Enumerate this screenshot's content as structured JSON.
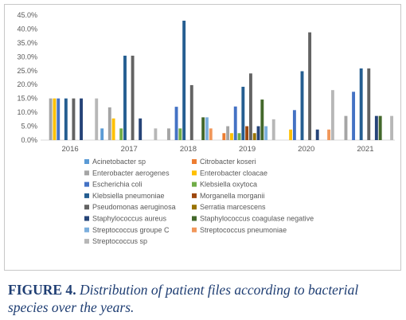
{
  "chart_data": {
    "type": "bar",
    "title": "",
    "xlabel": "",
    "ylabel": "",
    "ylim": [
      0,
      45
    ],
    "yticks": [
      "0.0%",
      "5.0%",
      "10.0%",
      "15.0%",
      "20.0%",
      "25.0%",
      "30.0%",
      "35.0%",
      "40.0%",
      "45.0%"
    ],
    "categories": [
      "2016",
      "2017",
      "2018",
      "2019",
      "2020",
      "2021"
    ],
    "legend_position": "bottom",
    "series": [
      {
        "name": "Acinetobacter sp",
        "color": "#5b9bd5",
        "values": [
          0,
          4.2,
          0,
          0,
          0,
          0
        ]
      },
      {
        "name": "Citrobacter koseri",
        "color": "#ed7d31",
        "values": [
          0,
          0,
          0,
          2.5,
          0,
          0
        ]
      },
      {
        "name": "Enterobacter aerogenes",
        "color": "#a5a5a5",
        "values": [
          15,
          11.8,
          4.2,
          5,
          0,
          8.7
        ]
      },
      {
        "name": "Enterobacter cloacae",
        "color": "#ffc000",
        "values": [
          15,
          7.8,
          0,
          2.5,
          3.8,
          0
        ]
      },
      {
        "name": "Escherichia coli",
        "color": "#4472c4",
        "values": [
          15,
          0,
          12,
          12.1,
          10.8,
          17.4
        ]
      },
      {
        "name": "Klebsiella oxytoca",
        "color": "#70ad47",
        "values": [
          0,
          4.2,
          4.2,
          2.5,
          0,
          0
        ]
      },
      {
        "name": "Klebsiella pneumoniae",
        "color": "#255e91",
        "values": [
          15,
          30.4,
          43,
          19.2,
          24.8,
          25.8
        ]
      },
      {
        "name": "Morganella morganii",
        "color": "#9e480e",
        "values": [
          0,
          0,
          0,
          5,
          0,
          0
        ]
      },
      {
        "name": "Pseudomonas aeruginosa",
        "color": "#636363",
        "values": [
          15,
          30.4,
          19.8,
          24,
          38.8,
          25.8
        ]
      },
      {
        "name": "Serratia marcescens",
        "color": "#997300",
        "values": [
          0,
          0,
          0,
          2.5,
          0,
          0
        ]
      },
      {
        "name": "Staphylococcus aureus",
        "color": "#264478",
        "values": [
          15,
          7.8,
          0,
          5,
          3.8,
          8.7
        ]
      },
      {
        "name": "Staphylococcus coagulase negative",
        "color": "#43682b",
        "values": [
          0,
          0,
          8.2,
          14.6,
          0,
          8.7
        ]
      },
      {
        "name": "Streptococcus groupe C",
        "color": "#7cafdd",
        "values": [
          0,
          0,
          8.2,
          5,
          0,
          0
        ]
      },
      {
        "name": "Streptococcus pneumoniae",
        "color": "#f1975a",
        "values": [
          0,
          0,
          4.2,
          0,
          3.8,
          0
        ]
      },
      {
        "name": "Streptococcus sp",
        "color": "#b7b7b7",
        "values": [
          15,
          4.2,
          0,
          7.5,
          18,
          8.7
        ]
      }
    ]
  },
  "caption": {
    "label": "FIGURE 4",
    "text": "Distribution of patient files according to bacterial species over the years."
  }
}
